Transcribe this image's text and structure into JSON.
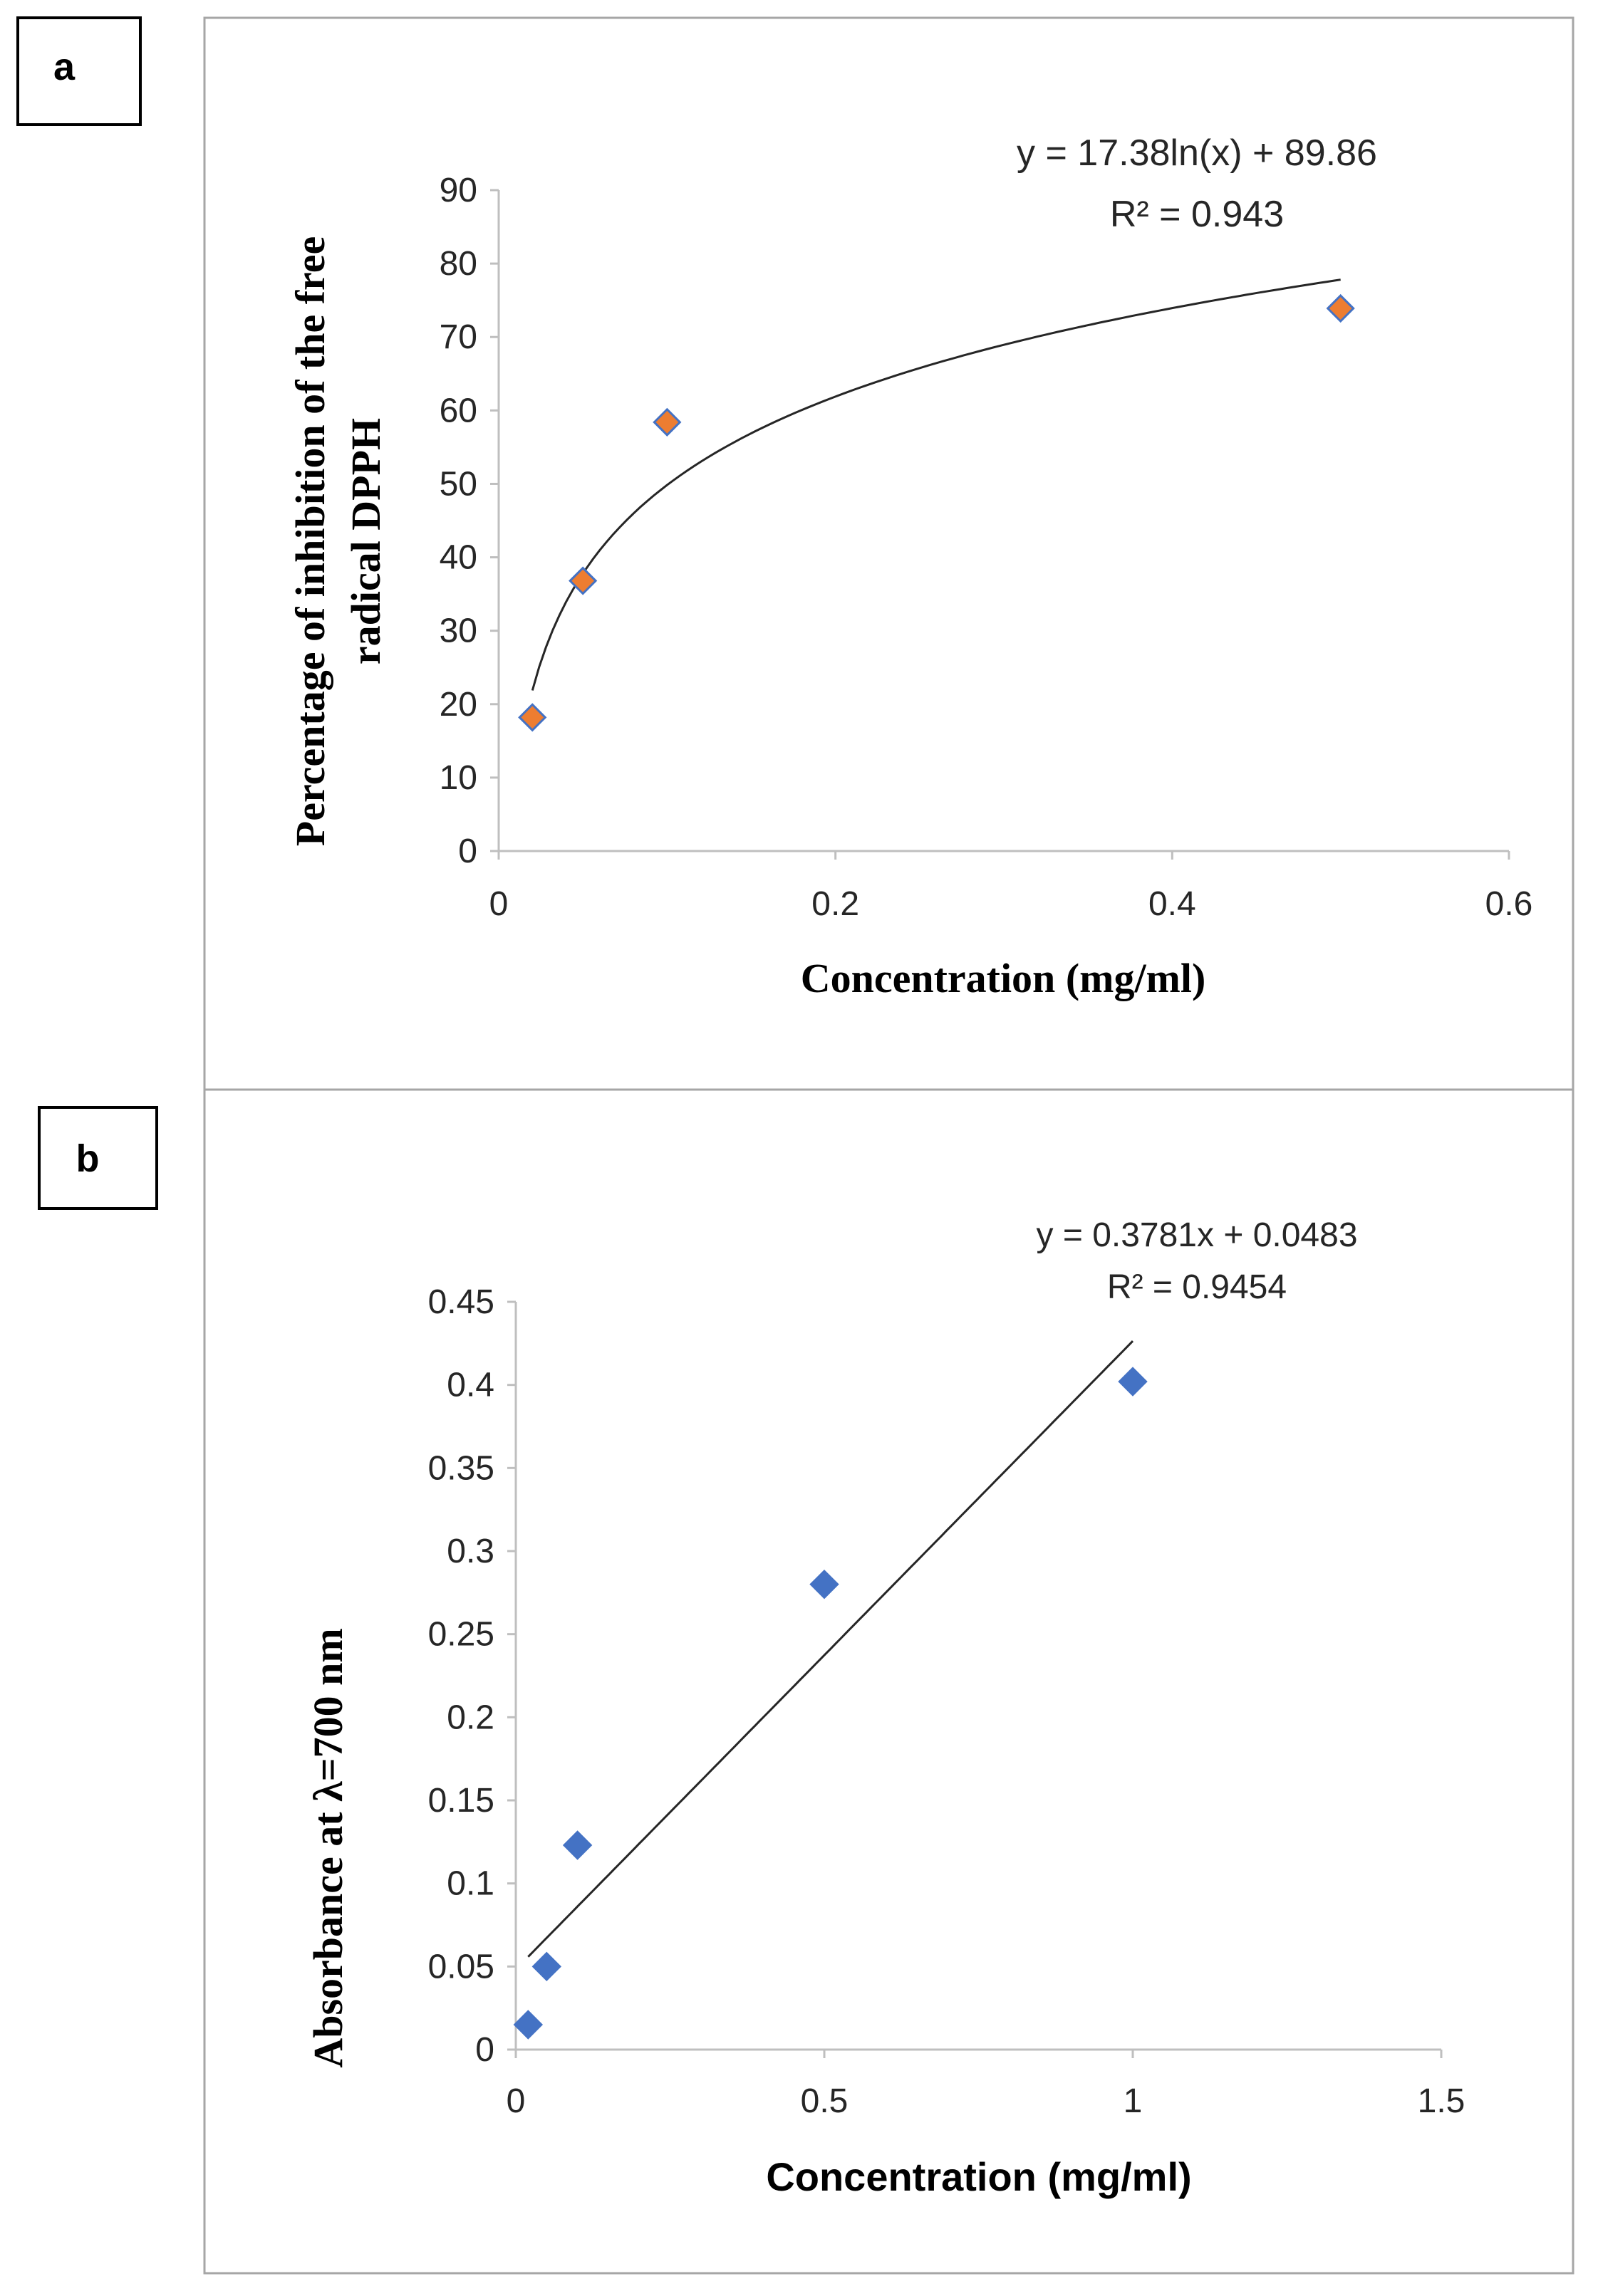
{
  "panels": {
    "a": {
      "letter": "a"
    },
    "b": {
      "letter": "b"
    }
  },
  "colors": {
    "orange_marker": "#ED7D31",
    "blue_marker": "#4472C4",
    "marker_outline": "#4472C4",
    "trendline": "#262626",
    "axis": "#bfbfbf",
    "frame": "#000000",
    "outer_frame": "#a6a6a6"
  },
  "chart_data": [
    {
      "type": "scatter",
      "panel": "a",
      "xlabel": "Concentration (mg/ml)",
      "ylabel_lines": [
        "Percentage of inhibition of the free",
        "radical DPPH"
      ],
      "xlim": [
        0,
        0.6
      ],
      "ylim": [
        0,
        90
      ],
      "x_ticks": [
        0,
        0.2,
        0.4,
        0.6
      ],
      "x_tick_labels": [
        "0",
        "0.2",
        "0.4",
        "0.6"
      ],
      "y_ticks": [
        0,
        10,
        20,
        30,
        40,
        50,
        60,
        70,
        80,
        90
      ],
      "y_tick_labels": [
        "0",
        "10",
        "20",
        "30",
        "40",
        "50",
        "60",
        "70",
        "80",
        "90"
      ],
      "grid": false,
      "marker": "diamond",
      "points": [
        {
          "x": 0.02,
          "y": 18.2
        },
        {
          "x": 0.05,
          "y": 36.8
        },
        {
          "x": 0.1,
          "y": 58.4
        },
        {
          "x": 0.5,
          "y": 73.9
        }
      ],
      "trendline": {
        "kind": "log",
        "a": 17.38,
        "b": 89.86,
        "x_from": 0.02,
        "x_to": 0.5
      },
      "equation_lines": [
        "y = 17.38ln(x) + 89.86",
        "R² = 0.943"
      ]
    },
    {
      "type": "scatter",
      "panel": "b",
      "xlabel": "Concentration (mg/ml)",
      "ylabel": "Absorbance at λ=700 nm",
      "xlim": [
        0,
        1.5
      ],
      "ylim": [
        0,
        0.45
      ],
      "x_ticks": [
        0,
        0.5,
        1,
        1.5
      ],
      "x_tick_labels": [
        "0",
        "0.5",
        "1",
        "1.5"
      ],
      "y_ticks": [
        0,
        0.05,
        0.1,
        0.15,
        0.2,
        0.25,
        0.3,
        0.35,
        0.4,
        0.45
      ],
      "y_tick_labels": [
        "0",
        "0.05",
        "0.1",
        "0.15",
        "0.2",
        "0.25",
        "0.3",
        "0.35",
        "0.4",
        "0.45"
      ],
      "grid": false,
      "marker": "diamond",
      "points": [
        {
          "x": 0.02,
          "y": 0.015
        },
        {
          "x": 0.05,
          "y": 0.05
        },
        {
          "x": 0.1,
          "y": 0.123
        },
        {
          "x": 0.5,
          "y": 0.28
        },
        {
          "x": 1.0,
          "y": 0.402
        }
      ],
      "trendline": {
        "kind": "linear",
        "a": 0.3781,
        "b": 0.0483,
        "x_from": 0.02,
        "x_to": 1.0
      },
      "equation_lines": [
        "y = 0.3781x + 0.0483",
        "R² = 0.9454"
      ]
    }
  ]
}
